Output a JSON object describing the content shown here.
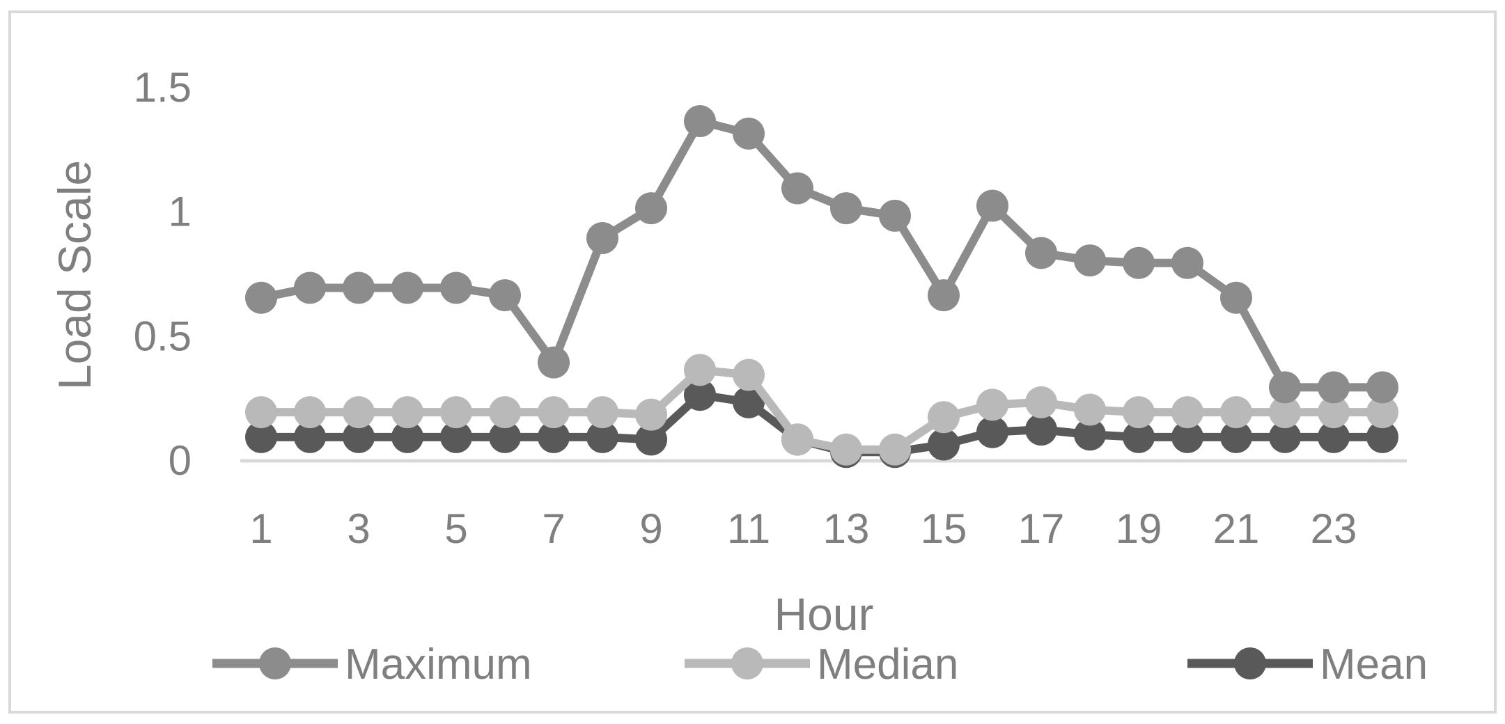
{
  "chart_data": {
    "type": "line",
    "title": "",
    "xlabel": "Hour",
    "ylabel": "Load Scale",
    "x": [
      1,
      2,
      3,
      4,
      5,
      6,
      7,
      8,
      9,
      10,
      11,
      12,
      13,
      14,
      15,
      16,
      17,
      18,
      19,
      20,
      21,
      22,
      23,
      24
    ],
    "x_tick_labels": [
      "1",
      "3",
      "5",
      "7",
      "9",
      "11",
      "13",
      "15",
      "17",
      "19",
      "21",
      "23"
    ],
    "x_tick_values": [
      1,
      3,
      5,
      7,
      9,
      11,
      13,
      15,
      17,
      19,
      21,
      23
    ],
    "y_tick_labels": [
      "0",
      "0.5",
      "1",
      "1.5"
    ],
    "y_tick_values": [
      0,
      0.5,
      1,
      1.5
    ],
    "ylim": [
      0,
      1.5
    ],
    "xlim": [
      0.5,
      24.5
    ],
    "grid": false,
    "legend_position": "bottom",
    "series": [
      {
        "name": "Maximum",
        "color": "#8c8c8c",
        "values": [
          0.65,
          0.69,
          0.69,
          0.69,
          0.69,
          0.66,
          0.39,
          0.89,
          1.01,
          1.36,
          1.31,
          1.09,
          1.01,
          0.98,
          0.66,
          1.02,
          0.83,
          0.8,
          0.79,
          0.79,
          0.65,
          0.29,
          0.29,
          0.29
        ]
      },
      {
        "name": "Median",
        "color": "#b9b9b9",
        "values": [
          0.19,
          0.19,
          0.19,
          0.19,
          0.19,
          0.19,
          0.19,
          0.19,
          0.18,
          0.36,
          0.34,
          0.08,
          0.04,
          0.04,
          0.17,
          0.22,
          0.23,
          0.2,
          0.19,
          0.19,
          0.19,
          0.19,
          0.19,
          0.19
        ]
      },
      {
        "name": "Mean",
        "color": "#595959",
        "values": [
          0.09,
          0.09,
          0.09,
          0.09,
          0.09,
          0.09,
          0.09,
          0.09,
          0.08,
          0.26,
          0.23,
          0.08,
          0.03,
          0.03,
          0.06,
          0.11,
          0.12,
          0.1,
          0.09,
          0.09,
          0.09,
          0.09,
          0.09,
          0.09
        ]
      }
    ]
  }
}
